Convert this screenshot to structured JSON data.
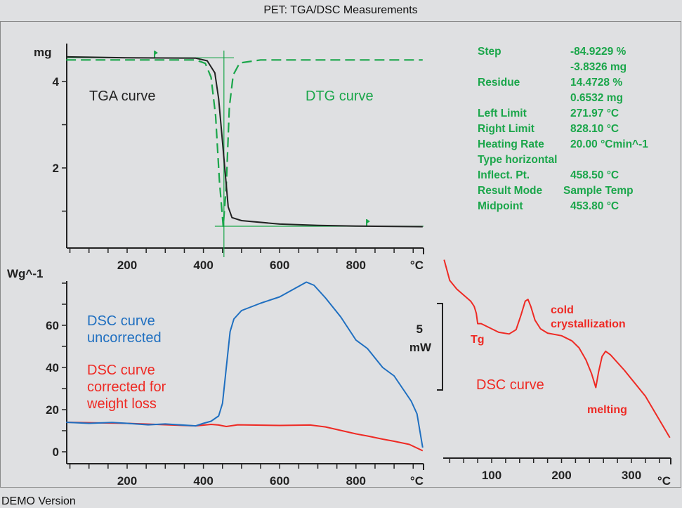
{
  "window": {
    "title": "PET: TGA/DSC Measurements",
    "footer": "DEMO Version"
  },
  "colors": {
    "tga": "#222222",
    "dtg": "#1aa64a",
    "dsc_uncorrected": "#1f6fc0",
    "dsc_corrected": "#ee2a24",
    "background": "#dfe0e2"
  },
  "results": [
    {
      "label": "Step",
      "value": "-84.9229 %"
    },
    {
      "label": "",
      "value": "-3.8326 mg"
    },
    {
      "label": "Residue",
      "value": "14.4728 %"
    },
    {
      "label": "",
      "value": "0.6532 mg"
    },
    {
      "label": "Left Limit",
      "value": "271.97 °C"
    },
    {
      "label": "Right Limit",
      "value": "828.10 °C"
    },
    {
      "label": "Heating Rate",
      "value": "20.00 °Cmin^-1"
    },
    {
      "label": "Type horizontal",
      "value": ""
    },
    {
      "label": "Inflect. Pt.",
      "value": "458.50 °C"
    },
    {
      "label": "Result Mode",
      "value": "Sample Temp"
    },
    {
      "label": "Midpoint",
      "value": "453.80 °C"
    }
  ],
  "chart_data": [
    {
      "type": "line",
      "ylabel": "mg",
      "xlabel": "°C",
      "xlim": [
        40,
        975
      ],
      "ylim": [
        0.15,
        4.9
      ],
      "xticks": [
        200,
        400,
        600,
        800
      ],
      "yticks": [
        2,
        4
      ],
      "grid": false,
      "annotations": [
        "TGA curve",
        "DTG curve"
      ],
      "evaluation": {
        "left_limit": 271.97,
        "right_limit": 828.1,
        "midpoint": 453.8,
        "upper_level": 4.55,
        "lower_level": 0.65
      },
      "series": [
        {
          "name": "TGA curve",
          "style": "solid",
          "color": "#222222",
          "x": [
            40,
            200,
            380,
            410,
            430,
            440,
            450,
            458,
            465,
            475,
            500,
            600,
            700,
            800,
            975
          ],
          "y": [
            4.57,
            4.55,
            4.54,
            4.48,
            4.2,
            3.6,
            2.6,
            1.8,
            1.1,
            0.85,
            0.78,
            0.7,
            0.67,
            0.655,
            0.64
          ]
        },
        {
          "name": "DTG curve",
          "style": "dashed",
          "color": "#1aa64a",
          "x": [
            40,
            380,
            405,
            420,
            432,
            442,
            452,
            460,
            468,
            478,
            495,
            550,
            975
          ],
          "y": [
            4.5,
            4.5,
            4.42,
            4.1,
            3.2,
            1.7,
            0.65,
            1.6,
            3.4,
            4.15,
            4.43,
            4.5,
            4.5
          ]
        }
      ]
    },
    {
      "type": "line",
      "ylabel": "Wg^-1",
      "xlabel": "°C",
      "xlim": [
        40,
        975
      ],
      "ylim": [
        -5.7,
        81
      ],
      "xticks": [
        200,
        400,
        600,
        800
      ],
      "yticks": [
        0,
        20,
        40,
        60
      ],
      "grid": false,
      "series": [
        {
          "name": "DSC curve uncorrected",
          "color": "#1f6fc0",
          "x": [
            40,
            100,
            160,
            200,
            255,
            300,
            380,
            400,
            420,
            440,
            450,
            460,
            470,
            480,
            500,
            550,
            600,
            640,
            670,
            690,
            720,
            760,
            800,
            830,
            870,
            900,
            930,
            945,
            960,
            975
          ],
          "y": [
            14,
            13.5,
            13.9,
            13.5,
            12.8,
            13.2,
            12.3,
            13.5,
            14.5,
            17,
            23,
            40,
            57,
            63,
            67,
            70.5,
            73.5,
            77.5,
            80.5,
            79,
            73,
            64,
            53,
            49,
            40,
            36,
            28,
            24,
            18,
            2
          ]
        },
        {
          "name": "DSC curve corrected for weight loss",
          "color": "#ee2a24",
          "x": [
            40,
            200,
            380,
            420,
            440,
            460,
            490,
            600,
            680,
            720,
            800,
            830,
            870,
            900,
            940,
            975
          ],
          "y": [
            14,
            13.5,
            12.3,
            13,
            12.7,
            12,
            12.8,
            12.5,
            12.7,
            11.8,
            8.5,
            7.5,
            6,
            5,
            3.5,
            0.5
          ]
        }
      ]
    },
    {
      "type": "line",
      "xlabel": "°C",
      "xlim": [
        31,
        355
      ],
      "xticks": [
        100,
        200,
        300
      ],
      "scale_bar": {
        "value": "5",
        "unit": "mW"
      },
      "annotations": [
        "Tg",
        "cold crystallization",
        "DSC curve",
        "melting"
      ],
      "grid": false,
      "series": [
        {
          "name": "DSC curve",
          "color": "#ee2a24",
          "x": [
            32,
            36,
            40,
            50,
            60,
            70,
            75,
            78,
            80,
            85,
            95,
            110,
            125,
            135,
            142,
            148,
            152,
            156,
            162,
            170,
            180,
            200,
            215,
            225,
            235,
            243,
            249,
            253,
            258,
            263,
            270,
            290,
            320,
            355
          ],
          "y": [
            11.4,
            10.8,
            10.2,
            9.7,
            9.35,
            9.0,
            8.7,
            8.3,
            7.7,
            7.7,
            7.5,
            7.2,
            7.1,
            7.35,
            8.2,
            9.0,
            9.1,
            8.7,
            7.9,
            7.4,
            7.15,
            7.0,
            6.7,
            6.3,
            5.6,
            4.8,
            4.0,
            4.9,
            5.8,
            6.1,
            5.9,
            5.0,
            3.5,
            1.1
          ]
        }
      ]
    }
  ]
}
